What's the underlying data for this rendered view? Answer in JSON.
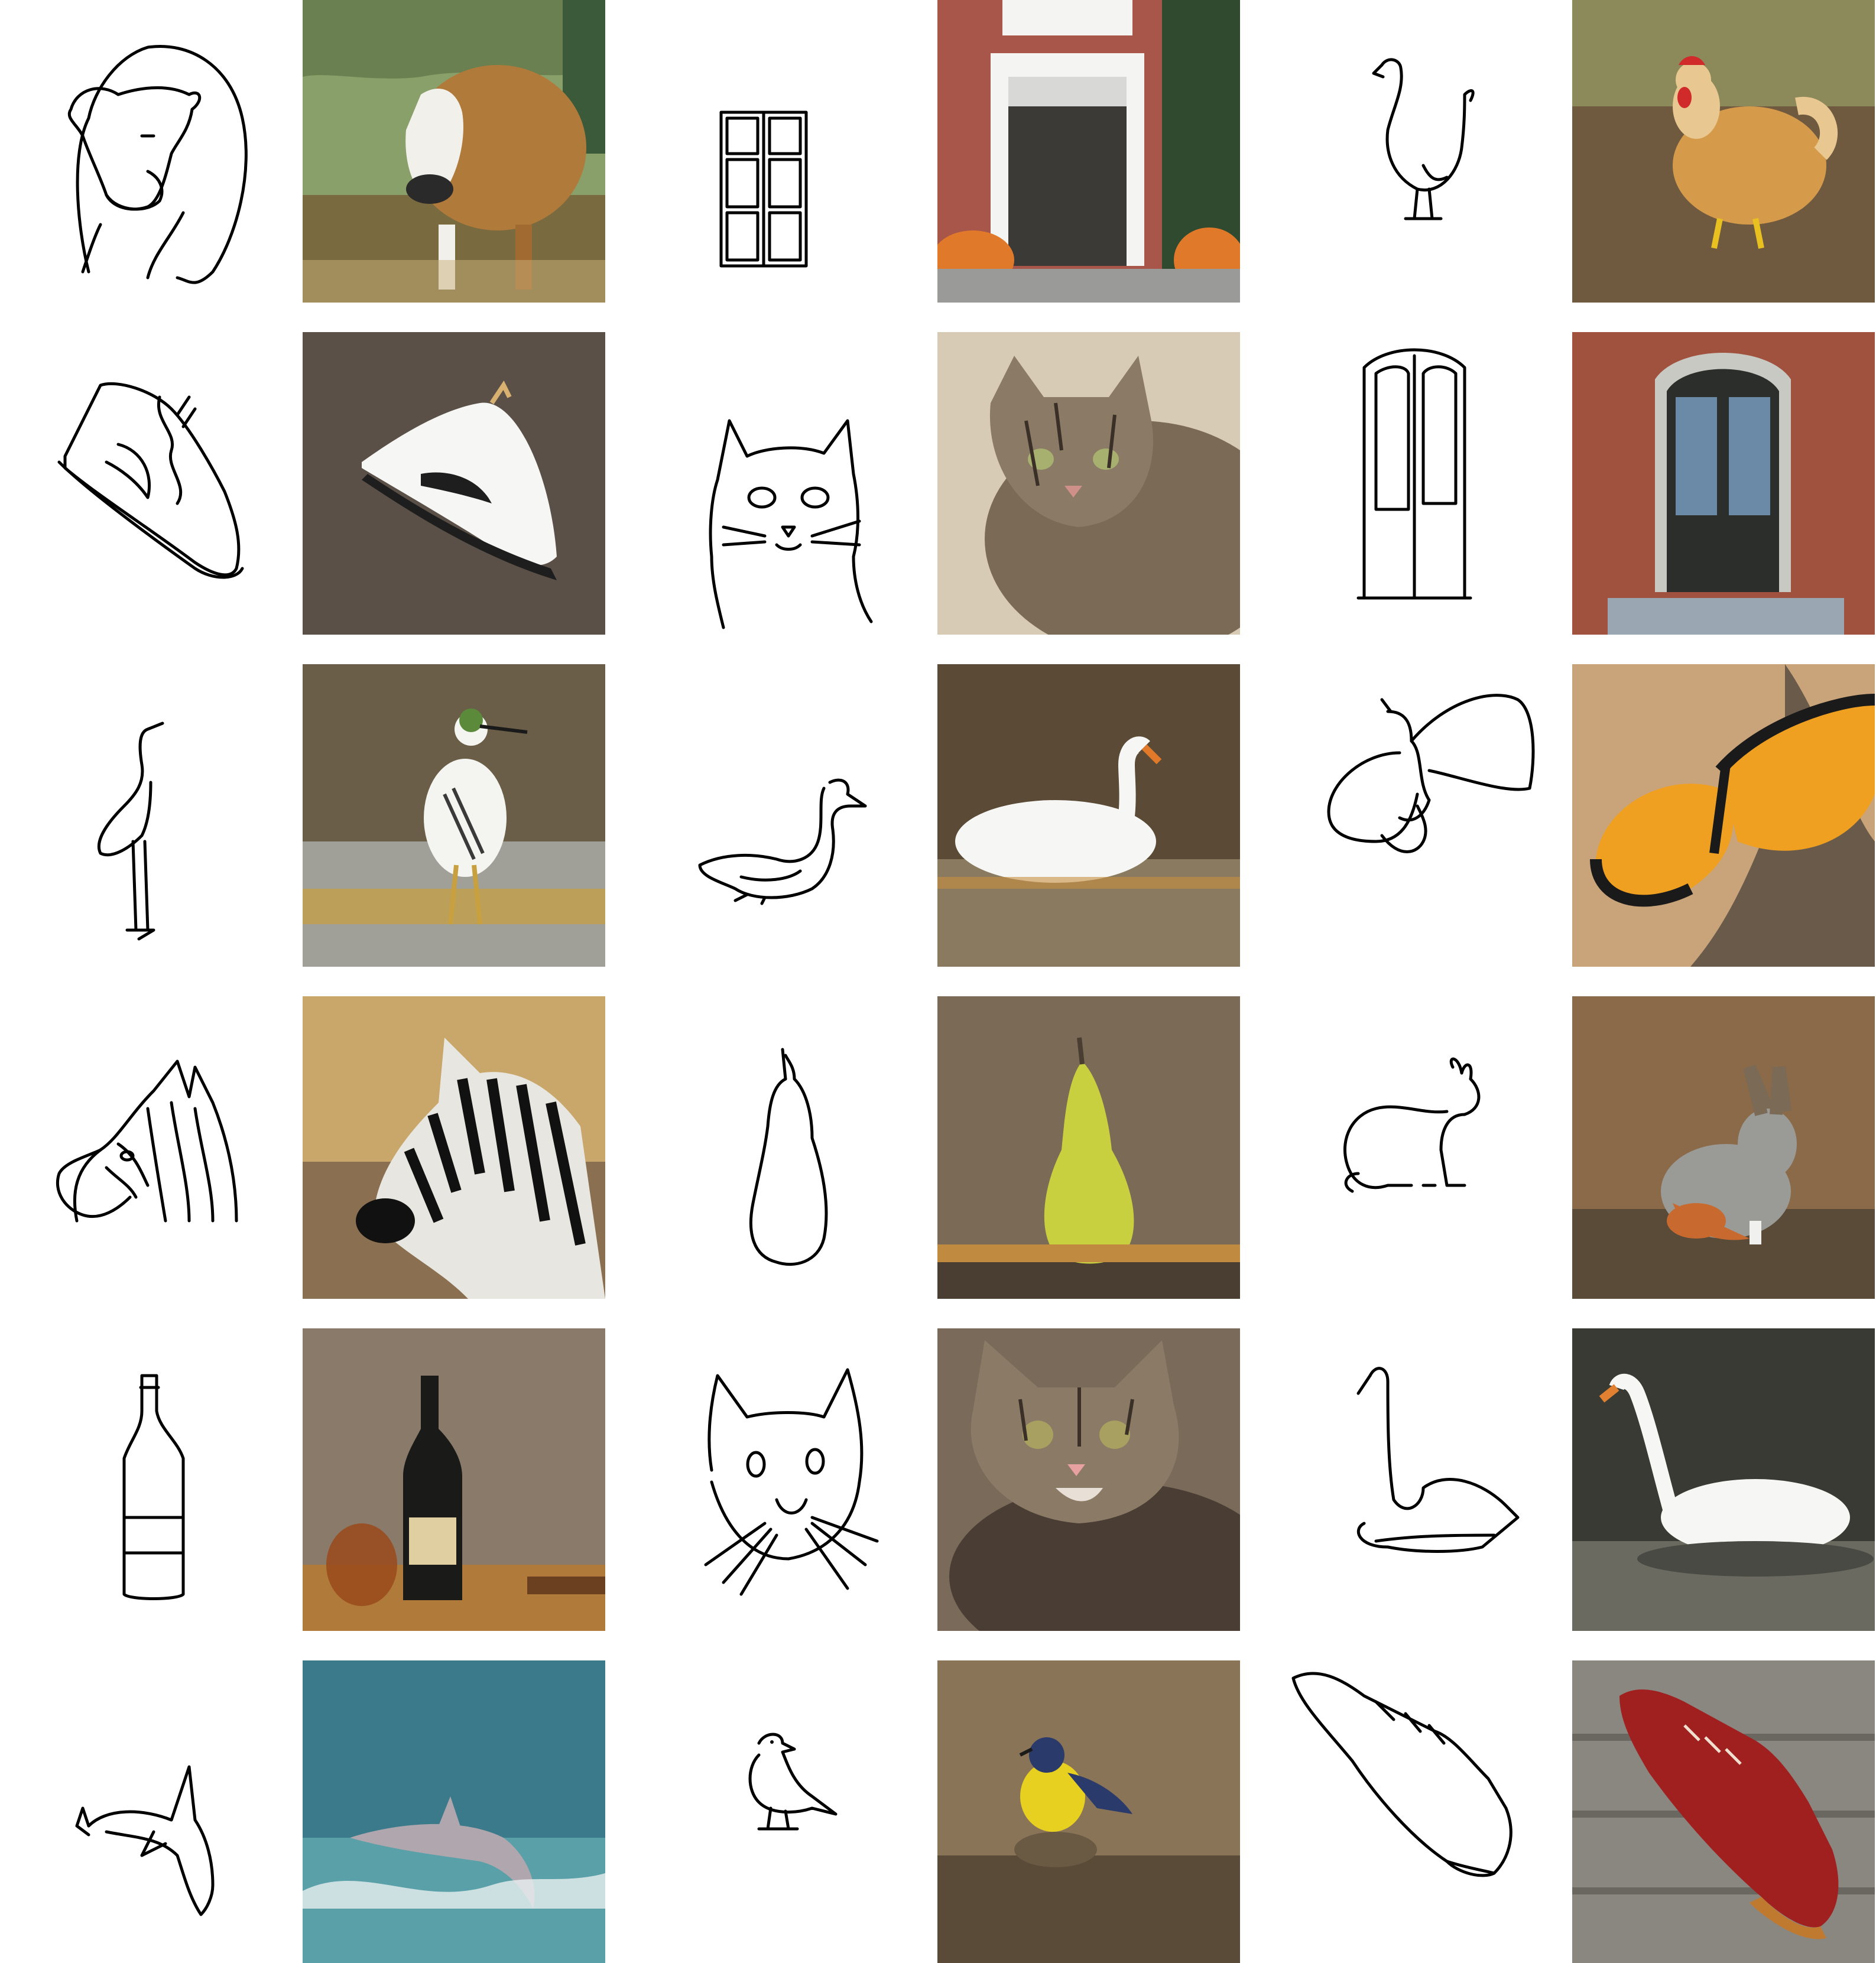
{
  "layout": {
    "columns": 3,
    "rows": 6
  },
  "pairs": [
    {
      "sketch": "cow-sketch",
      "photo": "cow-photo",
      "palette": [
        "#8aa06a",
        "#b07a3a",
        "#f2f0ea",
        "#c9b07a"
      ]
    },
    {
      "sketch": "door-sketch",
      "photo": "door-photo",
      "palette": [
        "#a8554a",
        "#f4f4f2",
        "#3b3a36",
        "#e07a2a"
      ]
    },
    {
      "sketch": "chicken-sketch",
      "photo": "chicken-photo",
      "palette": [
        "#8c8a5a",
        "#6f5a40",
        "#d59a4a",
        "#d02a2a"
      ]
    },
    {
      "sketch": "sneaker-sketch",
      "photo": "sneaker-photo",
      "palette": [
        "#5a5048",
        "#f6f6f4",
        "#1e1e1e",
        "#d8b070"
      ]
    },
    {
      "sketch": "cat-sketch",
      "photo": "cat-photo",
      "palette": [
        "#d8cbb6",
        "#7a6a56",
        "#3a3028",
        "#a8b070"
      ]
    },
    {
      "sketch": "door-sketch-2",
      "photo": "door-photo-2",
      "palette": [
        "#a0523e",
        "#2c2e2c",
        "#c9c9c4",
        "#6a8aa8"
      ]
    },
    {
      "sketch": "heron-sketch",
      "photo": "heron-photo",
      "palette": [
        "#6b5e48",
        "#a0a098",
        "#f4f4f0",
        "#c8a040"
      ]
    },
    {
      "sketch": "swan-sketch",
      "photo": "swan-photo",
      "palette": [
        "#5b4a36",
        "#8a7a60",
        "#f6f6f4",
        "#e07a2a"
      ]
    },
    {
      "sketch": "butterfly-sketch",
      "photo": "butterfly-photo",
      "palette": [
        "#c9a47a",
        "#6a5a4a",
        "#f0a020",
        "#1a1a1a"
      ]
    },
    {
      "sketch": "zebra-sketch",
      "photo": "zebra-photo",
      "palette": [
        "#c9a66a",
        "#e8e6e0",
        "#111111",
        "#8a7050"
      ]
    },
    {
      "sketch": "pear-sketch",
      "photo": "pear-photo",
      "palette": [
        "#7a6a56",
        "#4a3e32",
        "#c8d040",
        "#c08a40"
      ]
    },
    {
      "sketch": "rabbit-sketch",
      "photo": "rabbit-photo",
      "palette": [
        "#8a6a48",
        "#5a4a38",
        "#9a9a96",
        "#c86a30"
      ]
    },
    {
      "sketch": "bottle-sketch",
      "photo": "bottle-photo",
      "palette": [
        "#8a7a6a",
        "#1a1a18",
        "#e0cfa0",
        "#9a4a1a"
      ]
    },
    {
      "sketch": "cat-sketch-2",
      "photo": "cat-photo-2",
      "palette": [
        "#7a6a5a",
        "#4a3e34",
        "#e8e0d6",
        "#a8a060"
      ]
    },
    {
      "sketch": "swan-sketch-2",
      "photo": "swan-photo-2",
      "palette": [
        "#3a3a34",
        "#6a6a60",
        "#f6f6f4",
        "#e08030"
      ]
    },
    {
      "sketch": "dolphin-sketch",
      "photo": "dolphin-photo",
      "palette": [
        "#3a7a8a",
        "#5aa0a8",
        "#b0a6ae",
        "#e8f0f0"
      ]
    },
    {
      "sketch": "bird-sketch",
      "photo": "bird-photo",
      "palette": [
        "#8a7458",
        "#5a4a38",
        "#e8d020",
        "#2a3a6a"
      ]
    },
    {
      "sketch": "shoe-sketch",
      "photo": "shoe-photo",
      "palette": [
        "#8a8680",
        "#6a6660",
        "#a02020",
        "#c07a30"
      ]
    }
  ]
}
